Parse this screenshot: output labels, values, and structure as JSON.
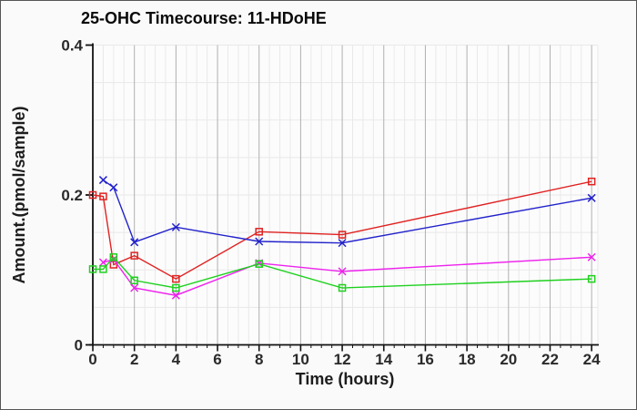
{
  "window": {
    "background": "#fafafa",
    "border_color": "#555555"
  },
  "chart_data": {
    "type": "line",
    "title": "25-OHC Timecourse: 11-HDoHE",
    "xlabel": "Time (hours)",
    "ylabel": "Amount.(pmol/sample)",
    "xlim": [
      0,
      24.3
    ],
    "ylim": [
      0,
      0.4
    ],
    "x_ticks_major": [
      0,
      2,
      4,
      6,
      8,
      10,
      12,
      14,
      16,
      18,
      20,
      22,
      24
    ],
    "x_minor_step": 0.5,
    "y_ticks": [
      {
        "value": 0,
        "label": "0"
      },
      {
        "value": 0.2,
        "label": "0.2"
      },
      {
        "value": 0.4,
        "label": "0.4"
      }
    ],
    "y_minor_step": 0.05,
    "grid": "on",
    "legend": "none",
    "colors": {
      "axis": "#111111",
      "major_grid": "#b0b0b0",
      "minor_grid": "#e9e9e9",
      "plot_background": "#fcfcfc"
    },
    "series": [
      {
        "name": "red-squares",
        "color": "#e02222",
        "marker": "square",
        "x": [
          0,
          0.5,
          1,
          2,
          4,
          8,
          12,
          24
        ],
        "y": [
          0.2,
          0.198,
          0.107,
          0.119,
          0.088,
          0.151,
          0.147,
          0.218
        ]
      },
      {
        "name": "blue-x",
        "color": "#2222cc",
        "marker": "x",
        "x": [
          0.5,
          1,
          2,
          4,
          8,
          12,
          24
        ],
        "y": [
          0.22,
          0.21,
          0.137,
          0.157,
          0.138,
          0.136,
          0.196
        ]
      },
      {
        "name": "magenta-x",
        "color": "#ee22ee",
        "marker": "x",
        "x": [
          0.5,
          1,
          2,
          4,
          8,
          12,
          24
        ],
        "y": [
          0.11,
          0.114,
          0.076,
          0.066,
          0.109,
          0.098,
          0.117
        ]
      },
      {
        "name": "green-squares",
        "color": "#1fd11f",
        "marker": "square",
        "x": [
          0,
          0.5,
          1,
          2,
          4,
          8,
          12,
          24
        ],
        "y": [
          0.101,
          0.101,
          0.117,
          0.086,
          0.076,
          0.108,
          0.076,
          0.088
        ]
      }
    ]
  }
}
